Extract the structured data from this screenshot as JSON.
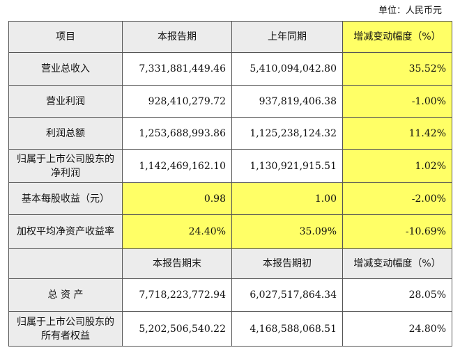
{
  "unit": "单位：人民币元",
  "table": {
    "rows": [
      [
        "项目",
        "本报告期",
        "上年同期",
        "增减变动幅度（%）"
      ],
      [
        "营业总收入",
        "7,331,881,449.46",
        "5,410,094,042.80",
        "35.52%"
      ],
      [
        "营业利润",
        "928,410,279.72",
        "937,819,406.38",
        "-1.00%"
      ],
      [
        "利润总额",
        "1,253,688,993.86",
        "1,125,238,124.32",
        "11.42%"
      ],
      [
        "归属于上市公司股东的净利润",
        "1,142,469,162.10",
        "1,130,921,915.51",
        "1.02%"
      ],
      [
        "基本每股收益（元）",
        "0.98",
        "1.00",
        "-2.00%"
      ],
      [
        "加权平均净资产收益率",
        "24.40%",
        "35.09%",
        "-10.69%"
      ],
      [
        "",
        "本报告期末",
        "本报告期初",
        "增减变动幅度（%）"
      ],
      [
        "总 资 产",
        "7,718,223,772.94",
        "6,027,517,864.34",
        "28.05%"
      ],
      [
        "归属于上市公司股东的所有者权益",
        "5,202,506,540.22",
        "4,168,588,068.51",
        "24.80%"
      ]
    ]
  }
}
